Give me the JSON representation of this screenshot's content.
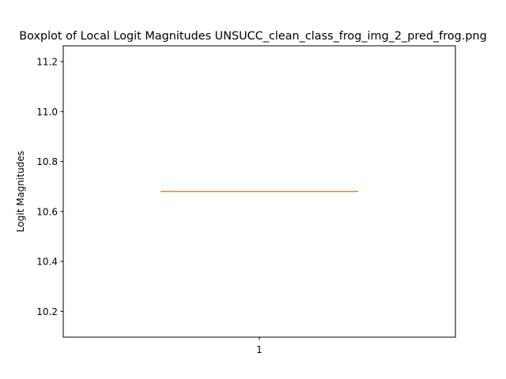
{
  "chart_data": {
    "type": "boxplot",
    "title": "Boxplot of Local Logit Magnitudes UNSUCC_clean_class_frog_img_2_pred_frog.png",
    "xlabel": "",
    "ylabel": "Logit Magnitudes",
    "categories": [
      "1"
    ],
    "boxes": [
      {
        "category": "1",
        "min": 10.68,
        "q1": 10.68,
        "median": 10.68,
        "q3": 10.68,
        "max": 10.68
      }
    ],
    "ylim": [
      10.0966,
      11.2634
    ],
    "yticks": [
      10.2,
      10.4,
      10.6,
      10.8,
      11.0,
      11.2
    ],
    "ytick_labels": [
      "10.2",
      "10.4",
      "10.6",
      "10.8",
      "11.0",
      "11.2"
    ],
    "xlim": [
      0.5,
      1.5
    ],
    "grid": false,
    "colors": {
      "box": "#000000",
      "median": "#ff7f0e",
      "axes": "#000000"
    }
  }
}
